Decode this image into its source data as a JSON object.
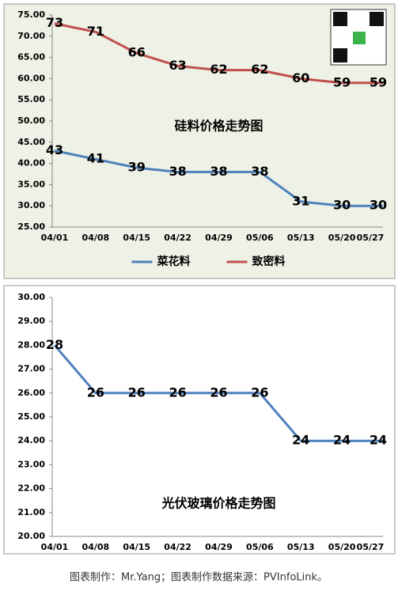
{
  "chart_data": [
    {
      "type": "line",
      "title": "硅料价格走势图",
      "categories": [
        "04/01",
        "04/08",
        "04/15",
        "04/22",
        "04/29",
        "05/06",
        "05/13",
        "05/20",
        "05/27"
      ],
      "series": [
        {
          "name": "菜花料",
          "color": "#4f81bd",
          "values": [
            43,
            41,
            39,
            38,
            38,
            38,
            31,
            30,
            30
          ]
        },
        {
          "name": "致密料",
          "color": "#c0504d",
          "values": [
            73,
            71,
            66,
            63,
            62,
            62,
            60,
            59,
            59
          ]
        }
      ],
      "ylim": [
        25,
        75
      ],
      "yticks": [
        {
          "value": 25,
          "label": "25.00"
        },
        {
          "value": 30,
          "label": "30.00"
        },
        {
          "value": 35,
          "label": "35.00"
        },
        {
          "value": 40,
          "label": "40.00"
        },
        {
          "value": 45,
          "label": "45.00"
        },
        {
          "value": 50,
          "label": "50.00"
        },
        {
          "value": 55,
          "label": "55.00"
        },
        {
          "value": 60,
          "label": "60.00"
        },
        {
          "value": 65,
          "label": "65.00"
        },
        {
          "value": 70,
          "label": "70.00"
        },
        {
          "value": 75,
          "label": "75.00"
        }
      ],
      "grid": false,
      "data_labels": true,
      "legend": "bottom"
    },
    {
      "type": "line",
      "title": "光伏玻璃价格走势图",
      "categories": [
        "04/01",
        "04/08",
        "04/15",
        "04/22",
        "04/29",
        "05/06",
        "05/13",
        "05/20",
        "05/27"
      ],
      "series": [
        {
          "name": null,
          "color": "#4f81bd",
          "values": [
            28,
            26,
            26,
            26,
            26,
            26,
            24,
            24,
            24
          ]
        }
      ],
      "ylim": [
        20,
        30
      ],
      "yticks": [
        {
          "value": 20,
          "label": "20.00"
        },
        {
          "value": 21,
          "label": "21.00"
        },
        {
          "value": 22,
          "label": "22.00"
        },
        {
          "value": 23,
          "label": "23.00"
        },
        {
          "value": 24,
          "label": "24.00"
        },
        {
          "value": 25,
          "label": "25.00"
        },
        {
          "value": 26,
          "label": "26.00"
        },
        {
          "value": 27,
          "label": "27.00"
        },
        {
          "value": 28,
          "label": "28.00"
        },
        {
          "value": 29,
          "label": "29.00"
        },
        {
          "value": 30,
          "label": "30.00"
        }
      ],
      "grid": false,
      "data_labels": true,
      "legend": "none"
    }
  ],
  "caption": "图表制作：Mr.Yang；图表制作数据来源：PVInfoLink。"
}
